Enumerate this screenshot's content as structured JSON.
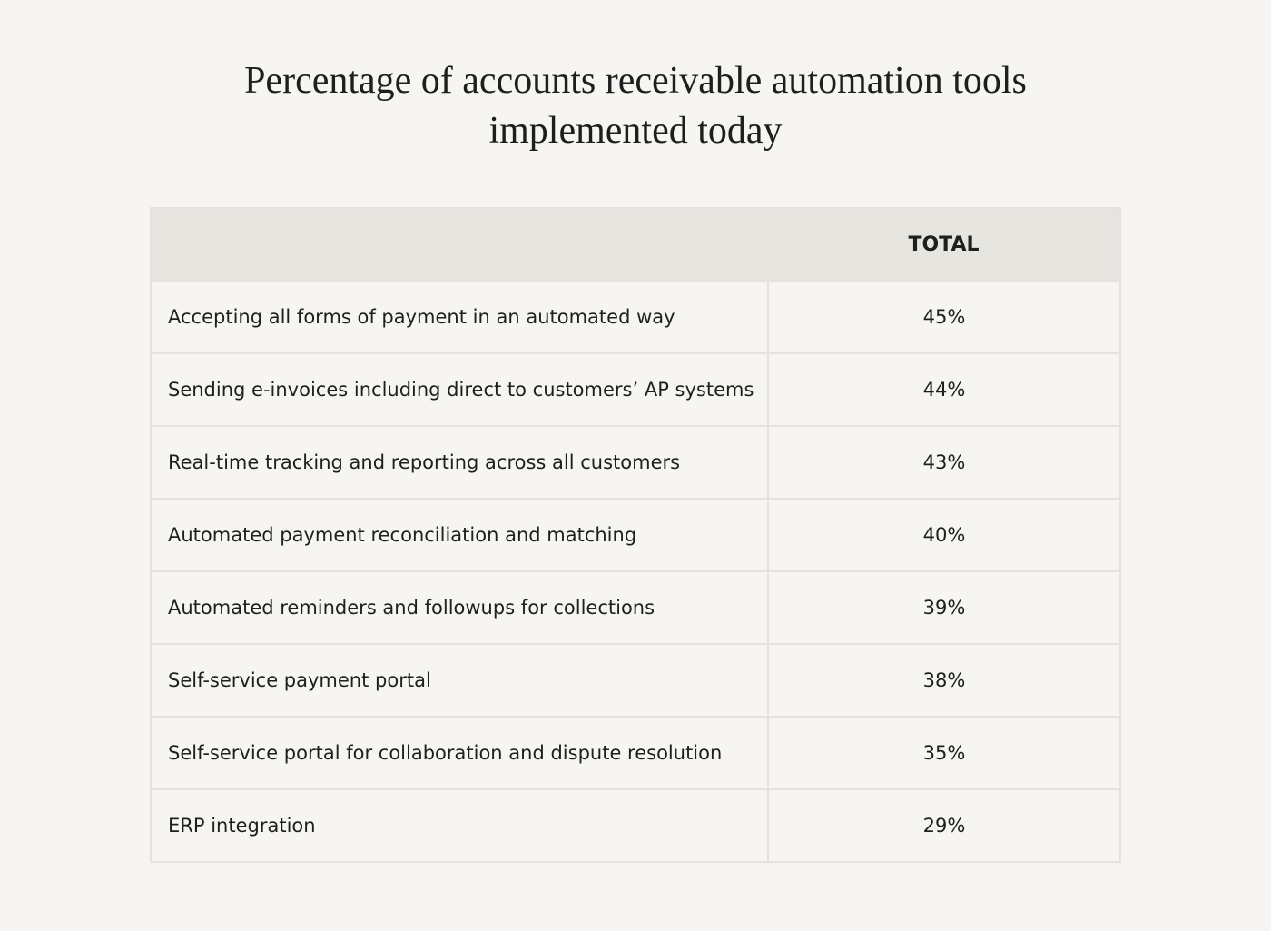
{
  "title": "Percentage of accounts receivable automation tools implemented today",
  "table": {
    "header": [
      "TOTAL"
    ],
    "rows": [
      [
        "Accepting all forms of payment in an automated way",
        "45%"
      ],
      [
        "Sending e-invoices including direct to customers’ AP systems",
        "44%"
      ],
      [
        "Real-time tracking and reporting across all customers",
        "43%"
      ],
      [
        "Automated payment reconciliation and matching",
        "40%"
      ],
      [
        "Automated reminders and followups for collections",
        "39%"
      ],
      [
        "Self-service payment portal",
        "38%"
      ],
      [
        "Self-service portal for collaboration and dispute resolution",
        "35%"
      ],
      [
        "ERP integration",
        "29%"
      ]
    ]
  }
}
